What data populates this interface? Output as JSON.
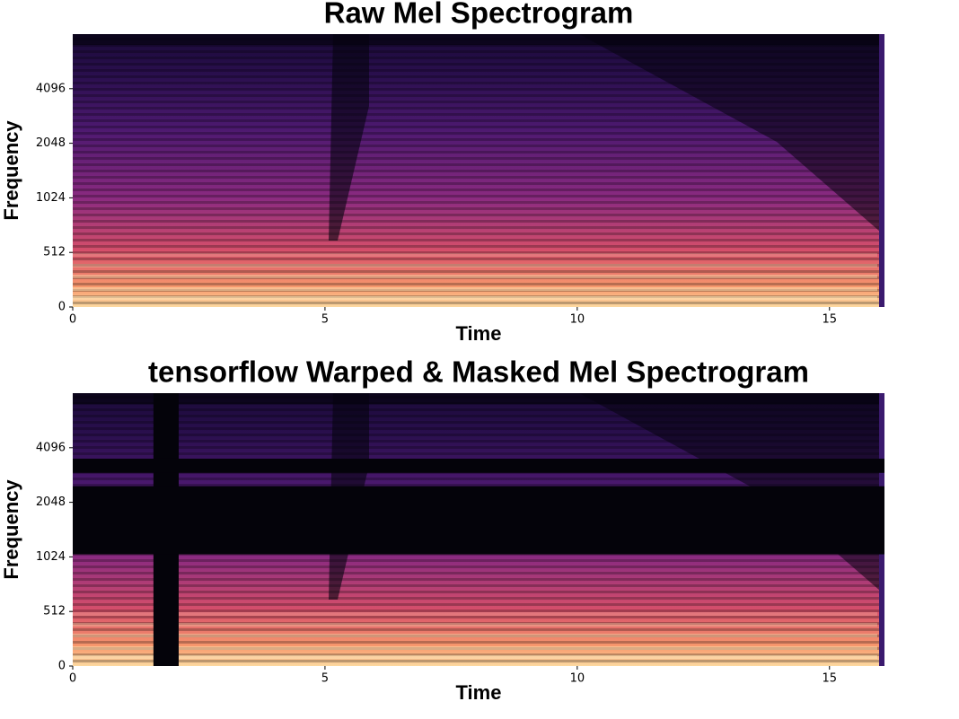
{
  "chart_data": [
    {
      "type": "spectrogram",
      "title": "Raw Mel Spectrogram",
      "xlabel": "Time",
      "ylabel": "Frequency",
      "xlim": [
        0,
        16.09
      ],
      "xticks": [
        0,
        5,
        10,
        15
      ],
      "ylim": [
        0,
        8192
      ],
      "yticks": [
        0,
        512,
        1024,
        2048,
        4096
      ],
      "yscale": "symlog",
      "linthresh": 512,
      "base": 2,
      "colormap": "magma"
    },
    {
      "type": "spectrogram",
      "title": "tensorflow Warped & Masked Mel Spectrogram",
      "xlabel": "Time",
      "ylabel": "Frequency",
      "xlim": [
        0,
        16.09
      ],
      "xticks": [
        0,
        5,
        10,
        15
      ],
      "ylim": [
        0,
        8192
      ],
      "yticks": [
        0,
        512,
        1024,
        2048,
        4096
      ],
      "yscale": "symlog",
      "linthresh": 512,
      "base": 2,
      "colormap": "magma",
      "time_masks": [
        [
          1.6,
          2.1
        ]
      ],
      "freq_masks": [
        [
          2977,
          3565
        ],
        [
          1058,
          2512
        ]
      ]
    }
  ]
}
